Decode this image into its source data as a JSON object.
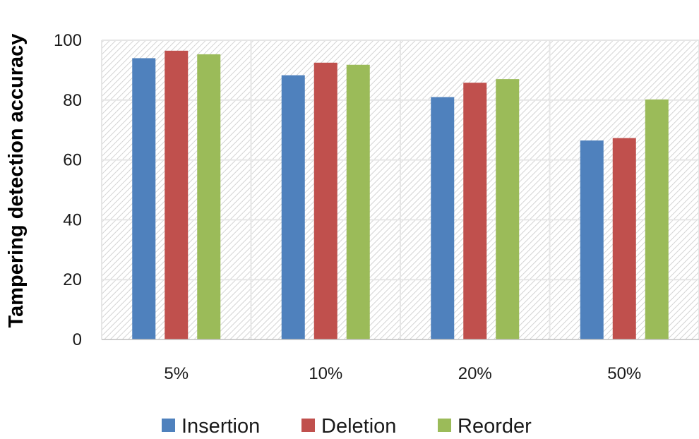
{
  "chart_data": {
    "type": "bar",
    "categories": [
      "5%",
      "10%",
      "20%",
      "50%"
    ],
    "series": [
      {
        "name": "Insertion",
        "color": "#4f81bd",
        "values": [
          94,
          88.3,
          81,
          66.5
        ]
      },
      {
        "name": "Deletion",
        "color": "#c0504d",
        "values": [
          96.5,
          92.5,
          85.8,
          67.3
        ]
      },
      {
        "name": "Reorder",
        "color": "#9bbb59",
        "values": [
          95.3,
          91.8,
          87,
          80.2
        ]
      }
    ],
    "title": "",
    "xlabel": "",
    "ylabel": "Tampering detection accuracy",
    "ylim": [
      0,
      100
    ],
    "yticks": [
      "0",
      "20",
      "40",
      "60",
      "80",
      "100"
    ],
    "grid": true,
    "legend_position": "bottom"
  }
}
